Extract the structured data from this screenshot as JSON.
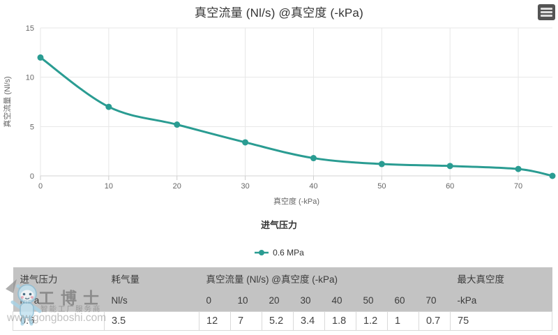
{
  "chart": {
    "title": "真空流量 (Nl/s) @真空度 (-kPa)",
    "x_axis_title": "真空度 (-kPa)",
    "y_axis_title": "真空流量 (Nl/s)",
    "legend_title": "进气压力",
    "legend_item_label": "0.6 MPa",
    "line_color": "#2a9c92",
    "grid_color": "#e7e7e7",
    "axis_line_color": "#d3d3d3",
    "tick_label_color": "#666666",
    "menu_icon": "hamburger-export-menu-icon"
  },
  "chart_data": {
    "type": "line",
    "title": "真空流量 (Nl/s) @真空度 (-kPa)",
    "xlabel": "真空度 (-kPa)",
    "ylabel": "真空流量 (Nl/s)",
    "x": [
      0,
      10,
      20,
      30,
      40,
      50,
      60,
      70,
      75
    ],
    "series": [
      {
        "name": "0.6 MPa",
        "values": [
          12,
          7,
          5.2,
          3.4,
          1.8,
          1.2,
          1,
          0.7,
          0
        ]
      }
    ],
    "xlim": [
      0,
      75
    ],
    "ylim": [
      0,
      15
    ],
    "x_ticks": [
      0,
      10,
      20,
      30,
      40,
      50,
      60,
      70
    ],
    "y_ticks": [
      0,
      5,
      10,
      15
    ],
    "grid": true,
    "legend_position": "bottom",
    "legend_title": "进气压力"
  },
  "table": {
    "header_row1": [
      {
        "label": "进气压力",
        "colspan": 1
      },
      {
        "label": "耗气量",
        "colspan": 1
      },
      {
        "label": "真空流量 (Nl/s) @真空度 (-kPa)",
        "colspan": 8
      },
      {
        "label": "最大真空度",
        "colspan": 1
      }
    ],
    "header_row2": [
      "MPa",
      "Nl/s",
      "0",
      "10",
      "20",
      "30",
      "40",
      "50",
      "60",
      "70",
      "-kPa"
    ],
    "rows": [
      [
        "0.6",
        "3.5",
        "12",
        "7",
        "5.2",
        "3.4",
        "1.8",
        "1.2",
        "1",
        "0.7",
        "75"
      ]
    ]
  },
  "watermark": {
    "brand": "工博士",
    "tagline": "智能工厂服务商",
    "url": "www.gongboshi.com"
  }
}
